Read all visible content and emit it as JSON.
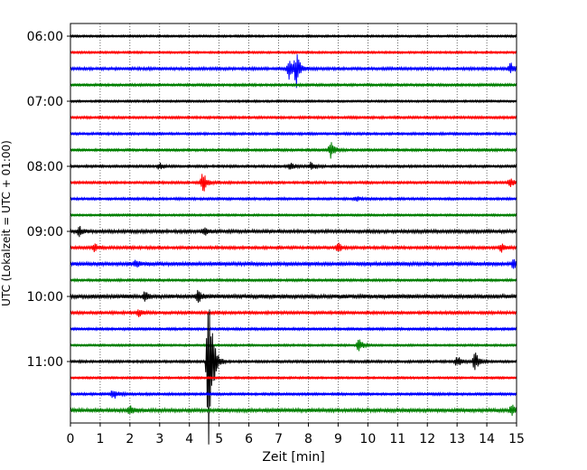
{
  "chart_data": {
    "type": "line",
    "title": "",
    "xlabel": "Zeit  [min]",
    "ylabel": "UTC (Lokalzeit = UTC + 01:00)",
    "xlim": [
      0,
      15
    ],
    "x_ticks": [
      0,
      1,
      2,
      3,
      4,
      5,
      6,
      7,
      8,
      9,
      10,
      11,
      12,
      13,
      14,
      15
    ],
    "y_tick_labels": [
      "06:00",
      "07:00",
      "08:00",
      "09:00",
      "10:00",
      "11:00"
    ],
    "trace_start_time": "06:00",
    "trace_interval_min": 15,
    "grid": "vertical-dotted",
    "colors": [
      "#000000",
      "#ff0000",
      "#0000ff",
      "#008000"
    ],
    "traces": [
      {
        "start": "06:00",
        "noise": 0.5,
        "events": []
      },
      {
        "start": "06:15",
        "noise": 0.5,
        "events": []
      },
      {
        "start": "06:30",
        "noise": 0.7,
        "events": [
          {
            "t": 7.35,
            "amp": 0.7
          },
          {
            "t": 7.6,
            "amp": 1.0
          },
          {
            "t": 14.8,
            "amp": 0.35
          }
        ]
      },
      {
        "start": "06:45",
        "noise": 0.6,
        "events": []
      },
      {
        "start": "07:00",
        "noise": 0.5,
        "events": []
      },
      {
        "start": "07:15",
        "noise": 0.6,
        "events": []
      },
      {
        "start": "07:30",
        "noise": 0.6,
        "events": []
      },
      {
        "start": "07:45",
        "noise": 0.6,
        "events": [
          {
            "t": 8.75,
            "amp": 0.55
          }
        ]
      },
      {
        "start": "08:00",
        "noise": 0.6,
        "events": [
          {
            "t": 3.0,
            "amp": 0.2
          },
          {
            "t": 7.4,
            "amp": 0.25
          },
          {
            "t": 8.1,
            "amp": 0.3
          }
        ]
      },
      {
        "start": "08:15",
        "noise": 0.6,
        "events": [
          {
            "t": 4.45,
            "amp": 0.7
          },
          {
            "t": 14.8,
            "amp": 0.3
          }
        ]
      },
      {
        "start": "08:30",
        "noise": 0.6,
        "events": [
          {
            "t": 9.6,
            "amp": 0.2
          }
        ]
      },
      {
        "start": "08:45",
        "noise": 0.5,
        "events": []
      },
      {
        "start": "09:00",
        "noise": 0.8,
        "events": [
          {
            "t": 0.3,
            "amp": 0.3
          },
          {
            "t": 4.5,
            "amp": 0.25
          }
        ]
      },
      {
        "start": "09:15",
        "noise": 0.7,
        "events": [
          {
            "t": 0.8,
            "amp": 0.25
          },
          {
            "t": 9.0,
            "amp": 0.3
          },
          {
            "t": 14.5,
            "amp": 0.25
          }
        ]
      },
      {
        "start": "09:30",
        "noise": 0.9,
        "events": [
          {
            "t": 2.2,
            "amp": 0.2
          },
          {
            "t": 14.9,
            "amp": 0.3
          }
        ]
      },
      {
        "start": "09:45",
        "noise": 0.6,
        "events": []
      },
      {
        "start": "10:00",
        "noise": 1.0,
        "events": [
          {
            "t": 2.5,
            "amp": 0.25
          },
          {
            "t": 4.3,
            "amp": 0.35
          }
        ]
      },
      {
        "start": "10:15",
        "noise": 0.7,
        "events": [
          {
            "t": 2.3,
            "amp": 0.25
          }
        ]
      },
      {
        "start": "10:30",
        "noise": 0.6,
        "events": []
      },
      {
        "start": "10:45",
        "noise": 0.5,
        "events": [
          {
            "t": 9.7,
            "amp": 0.4
          }
        ]
      },
      {
        "start": "11:00",
        "noise": 0.6,
        "events": [
          {
            "t": 4.65,
            "amp": 5.5
          },
          {
            "t": 13.0,
            "amp": 0.35
          },
          {
            "t": 13.6,
            "amp": 0.6
          }
        ]
      },
      {
        "start": "11:15",
        "noise": 0.5,
        "events": []
      },
      {
        "start": "11:30",
        "noise": 0.6,
        "events": [
          {
            "t": 1.45,
            "amp": 0.35
          }
        ]
      },
      {
        "start": "11:45",
        "noise": 0.9,
        "events": [
          {
            "t": 2.0,
            "amp": 0.3
          },
          {
            "t": 14.85,
            "amp": 0.45
          }
        ]
      }
    ]
  }
}
